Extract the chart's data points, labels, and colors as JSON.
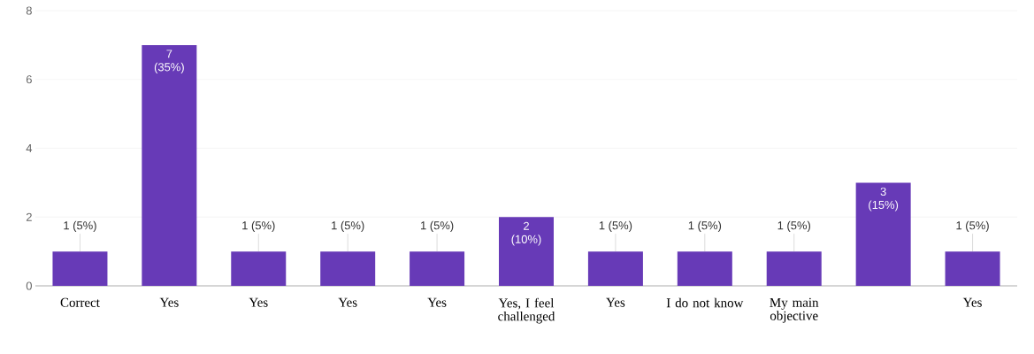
{
  "chart_data": {
    "type": "bar",
    "categories": [
      "Correct",
      "Yes",
      "Yes",
      "Yes",
      "Yes",
      "Yes, I feel challenged",
      "Yes",
      "I do not know",
      "My main objective",
      null,
      "Yes"
    ],
    "values": [
      1,
      7,
      1,
      1,
      1,
      2,
      1,
      1,
      1,
      3,
      1
    ],
    "value_labels": [
      "1 (5%)",
      "7 (35%)",
      "1 (5%)",
      "1 (5%)",
      "1 (5%)",
      "2 (10%)",
      "1 (5%)",
      "1 (5%)",
      "1 (5%)",
      "3 (15%)",
      "1 (5%)"
    ],
    "color": "#673ab7",
    "ylim": [
      0,
      8
    ],
    "yticks": [
      0,
      2,
      4,
      6,
      8
    ],
    "grid": "y"
  }
}
